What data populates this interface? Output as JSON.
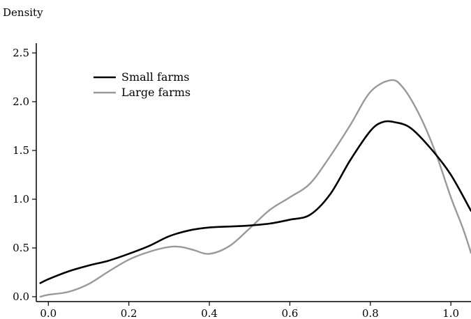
{
  "chart_data": {
    "type": "line",
    "title": "",
    "xlabel": "",
    "ylabel": "Density",
    "xlim": [
      -0.03,
      1.05
    ],
    "ylim": [
      -0.05,
      2.6
    ],
    "x_ticks": [
      "0.0",
      "0.2",
      "0.4",
      "0.6",
      "0.8",
      "1.0"
    ],
    "y_ticks": [
      "0.0",
      "0.5",
      "1.0",
      "1.5",
      "2.0",
      "2.5"
    ],
    "grid": false,
    "legend_position": "top-left",
    "series": [
      {
        "name": "Small farms",
        "color": "#000000",
        "x": [
          -0.02,
          0.0,
          0.05,
          0.1,
          0.15,
          0.2,
          0.25,
          0.3,
          0.35,
          0.4,
          0.45,
          0.5,
          0.55,
          0.6,
          0.65,
          0.7,
          0.75,
          0.8,
          0.83,
          0.86,
          0.9,
          0.95,
          1.0,
          1.05
        ],
        "values": [
          0.14,
          0.18,
          0.26,
          0.32,
          0.37,
          0.44,
          0.52,
          0.62,
          0.68,
          0.71,
          0.72,
          0.73,
          0.75,
          0.79,
          0.84,
          1.05,
          1.4,
          1.7,
          1.79,
          1.79,
          1.73,
          1.52,
          1.25,
          0.88
        ]
      },
      {
        "name": "Large farms",
        "color": "#999999",
        "x": [
          -0.02,
          0.0,
          0.05,
          0.1,
          0.15,
          0.2,
          0.25,
          0.3,
          0.33,
          0.36,
          0.4,
          0.45,
          0.5,
          0.55,
          0.6,
          0.65,
          0.7,
          0.75,
          0.8,
          0.85,
          0.88,
          0.92,
          0.96,
          1.0,
          1.03,
          1.05
        ],
        "values": [
          0.0,
          0.02,
          0.05,
          0.13,
          0.26,
          0.38,
          0.46,
          0.51,
          0.51,
          0.48,
          0.44,
          0.52,
          0.7,
          0.89,
          1.02,
          1.16,
          1.44,
          1.76,
          2.1,
          2.22,
          2.15,
          1.88,
          1.5,
          1.02,
          0.7,
          0.45
        ]
      }
    ]
  }
}
